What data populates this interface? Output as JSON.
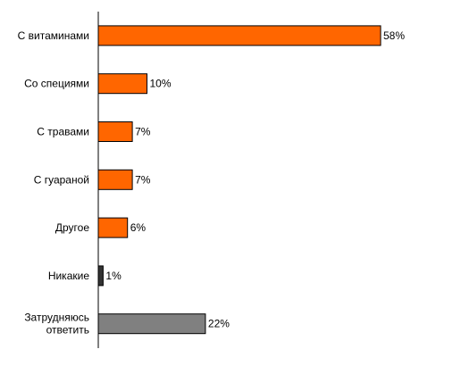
{
  "chart_data": {
    "type": "bar",
    "orientation": "horizontal",
    "categories": [
      [
        "С витаминами"
      ],
      [
        "Со специями"
      ],
      [
        "С травами"
      ],
      [
        "С гуараной"
      ],
      [
        "Другое"
      ],
      [
        "Никакие"
      ],
      [
        "Затрудняюсь",
        "ответить"
      ]
    ],
    "values": [
      58,
      10,
      7,
      7,
      6,
      1,
      22
    ],
    "value_labels": [
      "58%",
      "10%",
      "7%",
      "7%",
      "6%",
      "1%",
      "22%"
    ],
    "bar_colors": [
      "#FF6600",
      "#FF6600",
      "#FF6600",
      "#FF6600",
      "#FF6600",
      "#333333",
      "#808080"
    ],
    "xlim": [
      0,
      58
    ],
    "grid": false,
    "legend": "none",
    "title": "",
    "xlabel": "",
    "ylabel": ""
  }
}
